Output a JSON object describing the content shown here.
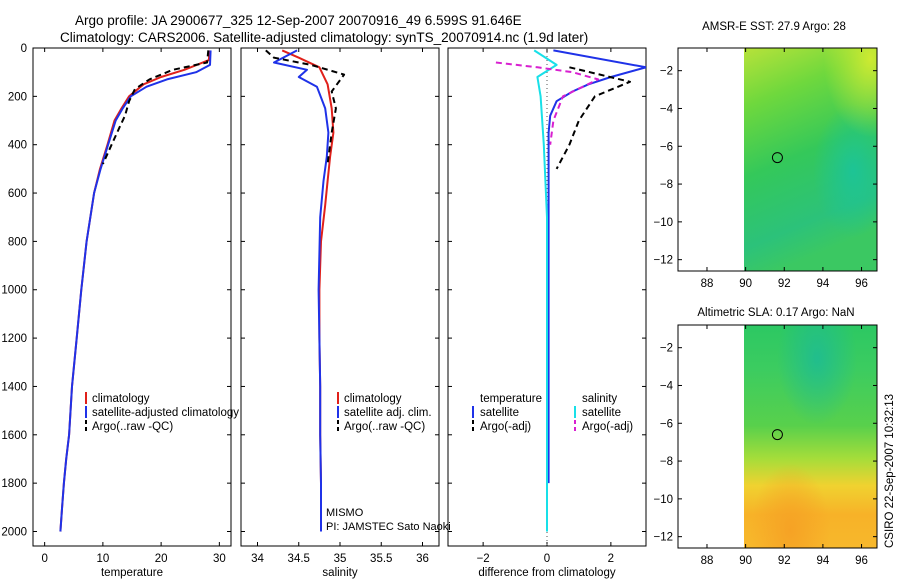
{
  "header": {
    "line1": "Argo profile: JA 2900677_325 12-Sep-2007 20070916_49 6.599S 91.646E",
    "line2": "Climatology: CARS2006. Satellite-adjusted climatology: synTS_20070914.nc (1.9d later)"
  },
  "side_note": "CSIRO 22-Sep-2007 10:32:13",
  "colors": {
    "climatology": "#e0201a",
    "satellite": "#1f32e8",
    "argo": "#000000",
    "sat_salinity": "#18e0e8",
    "argo_salinity_adj": "#d820d0"
  },
  "chart_data": [
    {
      "id": "temperature",
      "type": "line",
      "xlabel": "temperature",
      "ylabel": "",
      "xlim": [
        -2,
        32
      ],
      "ylim": [
        2060,
        0
      ],
      "xticks": [
        0,
        10,
        20,
        30
      ],
      "yticks": [
        0,
        200,
        400,
        600,
        800,
        1000,
        1200,
        1400,
        1600,
        1800,
        2000
      ],
      "legend": {
        "position": "center-right",
        "entries": [
          "climatology",
          "satellite-adjusted climatology",
          "Argo(..raw -QC)"
        ]
      },
      "series": [
        {
          "name": "climatology",
          "color": "#e0201a",
          "style": "solid",
          "x": [
            28.3,
            28.2,
            24,
            20,
            17,
            14.5,
            13.2,
            12,
            10.8,
            9.5,
            8.5,
            7.2,
            6.3,
            5.5,
            4.7,
            4.2,
            3.7,
            3.3,
            3.0,
            2.7
          ],
          "y": [
            10,
            50,
            90,
            120,
            150,
            200,
            250,
            300,
            400,
            500,
            600,
            800,
            1000,
            1200,
            1400,
            1600,
            1700,
            1800,
            1900,
            2000
          ]
        },
        {
          "name": "satellite",
          "color": "#1f32e8",
          "style": "solid",
          "x": [
            28.5,
            28.4,
            26,
            21,
            17.5,
            14.8,
            13.4,
            12.2,
            10.9,
            9.6,
            8.5,
            7.2,
            6.3,
            5.5,
            4.7,
            4.2,
            3.7,
            3.3,
            3.0,
            2.7
          ],
          "y": [
            10,
            70,
            100,
            130,
            160,
            200,
            250,
            300,
            400,
            500,
            600,
            800,
            1000,
            1200,
            1400,
            1600,
            1700,
            1800,
            1900,
            2000
          ]
        },
        {
          "name": "Argo(..raw -QC)",
          "color": "#000000",
          "style": "dashed",
          "x": [
            28.1,
            27.9,
            22,
            18,
            15.5,
            14.5,
            13.8,
            13,
            11.5,
            10
          ],
          "y": [
            10,
            60,
            90,
            130,
            170,
            220,
            280,
            320,
            400,
            480
          ]
        }
      ]
    },
    {
      "id": "salinity",
      "type": "line",
      "xlabel": "salinity",
      "ylabel": "",
      "xlim": [
        33.8,
        36.2
      ],
      "ylim": [
        2060,
        0
      ],
      "xticks": [
        34,
        34.5,
        35,
        35.5,
        36
      ],
      "legend": {
        "position": "center-right",
        "entries": [
          "climatology",
          "satellite adj. clim.",
          "Argo(..raw -QC)"
        ]
      },
      "series": [
        {
          "name": "climatology",
          "color": "#e0201a",
          "style": "solid",
          "x": [
            34.3,
            34.5,
            34.75,
            34.85,
            34.9,
            34.92,
            34.88,
            34.85,
            34.82,
            34.77,
            34.75,
            34.75,
            34.76,
            34.76,
            34.77,
            34.77
          ],
          "y": [
            10,
            40,
            80,
            150,
            250,
            350,
            450,
            550,
            650,
            800,
            1000,
            1200,
            1400,
            1600,
            1800,
            2000
          ]
        },
        {
          "name": "satellite",
          "color": "#1f32e8",
          "style": "solid",
          "x": [
            34.48,
            34.2,
            34.6,
            34.5,
            34.72,
            34.82,
            34.86,
            34.84,
            34.8,
            34.76,
            34.74,
            34.75,
            34.76,
            34.76,
            34.77,
            34.77
          ],
          "y": [
            10,
            60,
            90,
            120,
            160,
            250,
            350,
            450,
            550,
            700,
            1000,
            1200,
            1400,
            1600,
            1800,
            2000
          ]
        },
        {
          "name": "Argo(..raw -QC)",
          "color": "#000000",
          "style": "dashed",
          "x": [
            34.1,
            34.2,
            34.65,
            35.05,
            34.9,
            34.95,
            34.9,
            34.85
          ],
          "y": [
            10,
            40,
            70,
            110,
            180,
            250,
            350,
            480
          ]
        }
      ],
      "annotations": [
        "MISMO",
        "PI: JAMSTEC Sato Naoki"
      ]
    },
    {
      "id": "difference",
      "type": "line",
      "xlabel": "difference from climatology",
      "ylabel": "",
      "xlim": [
        -3.1,
        3.1
      ],
      "ylim": [
        2060,
        0
      ],
      "xticks": [
        -2,
        0,
        2
      ],
      "legend": {
        "position": "center",
        "entries": [
          "temperature",
          "satellite",
          "Argo(-adj)",
          "salinity",
          "satellite",
          "Argo(-adj)"
        ]
      },
      "series": [
        {
          "name": "temperature satellite",
          "color": "#1f32e8",
          "style": "solid",
          "x": [
            0.2,
            3.1,
            2.0,
            1.3,
            0.8,
            0.3,
            0.1,
            0.05,
            0.05,
            0.05,
            0.05,
            0.05,
            0.05,
            0.05,
            0.05
          ],
          "y": [
            10,
            80,
            120,
            150,
            180,
            220,
            280,
            350,
            500,
            800,
            1000,
            1200,
            1400,
            1600,
            1800
          ]
        },
        {
          "name": "temperature Argo(-adj)",
          "color": "#000000",
          "style": "dashed",
          "x": [
            0.7,
            2.6,
            1.5,
            1.0,
            0.7,
            0.5,
            0.3
          ],
          "y": [
            80,
            140,
            200,
            300,
            400,
            450,
            500
          ]
        },
        {
          "name": "salinity satellite",
          "color": "#18e0e8",
          "style": "solid",
          "x": [
            -0.4,
            0.3,
            -0.3,
            -0.2,
            -0.1,
            0.0,
            0.0,
            0.0,
            0.0,
            0.0
          ],
          "y": [
            10,
            70,
            120,
            200,
            400,
            700,
            1000,
            1400,
            1800,
            2000
          ]
        },
        {
          "name": "salinity Argo(-adj)",
          "color": "#d820d0",
          "style": "dashed",
          "x": [
            -1.6,
            -0.3,
            0.8,
            1.6,
            0.5,
            0.2,
            0.1
          ],
          "y": [
            60,
            80,
            100,
            130,
            200,
            300,
            400
          ]
        }
      ]
    },
    {
      "id": "sst_map",
      "type": "heatmap",
      "title": "AMSR-E SST: 27.9 Argo: 28",
      "xlim": [
        86.5,
        96.8
      ],
      "ylim": [
        -12.6,
        -0.8
      ],
      "xticks": [
        88,
        90,
        92,
        94,
        96
      ],
      "yticks": [
        -2,
        -4,
        -6,
        -8,
        -10,
        -12
      ],
      "data_start_lon": 90,
      "marker": {
        "lon": 91.646,
        "lat": -6.599
      }
    },
    {
      "id": "sla_map",
      "type": "heatmap",
      "title": "Altimetric SLA: 0.17 Argo: NaN",
      "xlim": [
        86.5,
        96.8
      ],
      "ylim": [
        -12.6,
        -0.8
      ],
      "xticks": [
        88,
        90,
        92,
        94,
        96
      ],
      "yticks": [
        -2,
        -4,
        -6,
        -8,
        -10,
        -12
      ],
      "data_start_lon": 90,
      "marker": {
        "lon": 91.646,
        "lat": -6.599
      }
    }
  ]
}
